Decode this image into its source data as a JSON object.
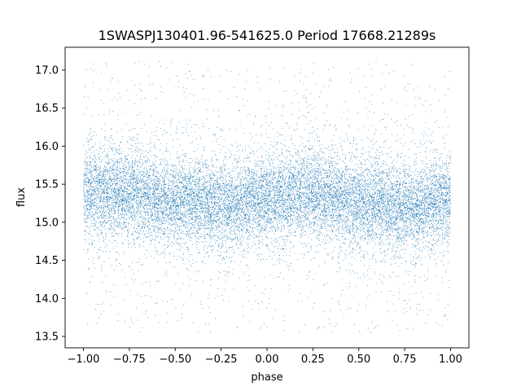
{
  "chart_data": {
    "type": "scatter",
    "title": "1SWASPJ130401.96-541625.0 Period 17668.21289s",
    "xlabel": "phase",
    "ylabel": "flux",
    "xlim": [
      -1.1,
      1.1
    ],
    "ylim": [
      13.35,
      17.3
    ],
    "xticks": [
      -1.0,
      -0.75,
      -0.5,
      -0.25,
      0.0,
      0.25,
      0.5,
      0.75,
      1.0
    ],
    "xtick_labels": [
      "−1.00",
      "−0.75",
      "−0.50",
      "−0.25",
      "0.00",
      "0.25",
      "0.50",
      "0.75",
      "1.00"
    ],
    "yticks": [
      13.5,
      14.0,
      14.5,
      15.0,
      15.5,
      16.0,
      16.5,
      17.0
    ],
    "ytick_labels": [
      "13.5",
      "14.0",
      "14.5",
      "15.0",
      "15.5",
      "16.0",
      "16.5",
      "17.0"
    ],
    "grid": false,
    "legend": "none",
    "marker_color": "#1f77b4",
    "series": [
      {
        "x_range": [
          -1.0,
          1.0
        ],
        "trend": {
          "x": [
            -1.0,
            -0.75,
            -0.5,
            -0.25,
            0.0,
            0.25,
            0.5,
            0.75,
            1.0
          ],
          "y": [
            15.4,
            15.4,
            15.27,
            15.22,
            15.3,
            15.4,
            15.25,
            15.2,
            15.3
          ]
        },
        "core_spread": 0.28,
        "outlier_range": [
          13.55,
          17.12
        ]
      }
    ]
  }
}
